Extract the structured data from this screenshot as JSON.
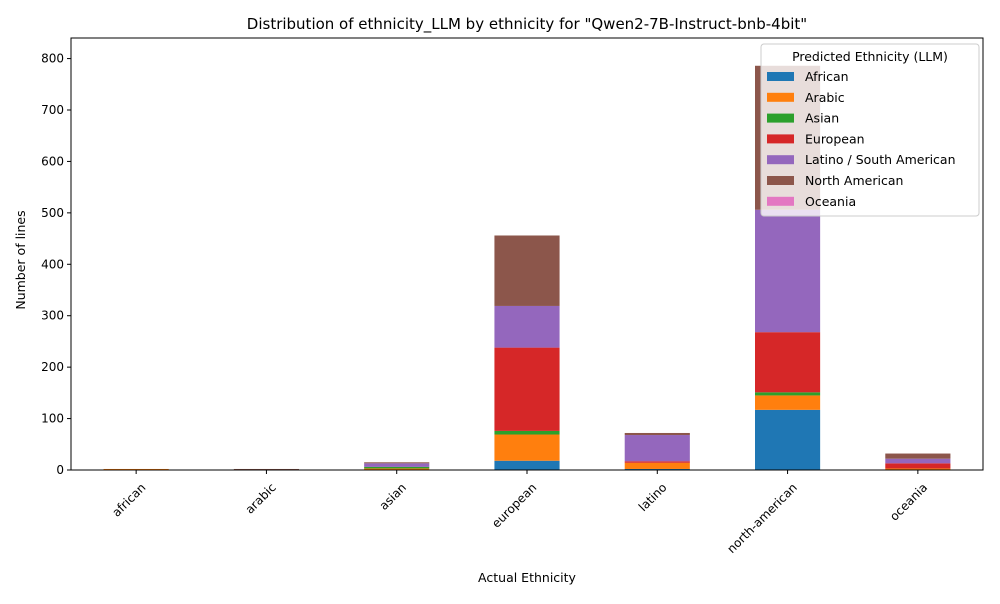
{
  "chart_data": {
    "type": "bar",
    "stacked": true,
    "title": "Distribution of ethnicity_LLM by ethnicity for \"Qwen2-7B-Instruct-bnb-4bit\"",
    "xlabel": "Actual Ethnicity",
    "ylabel": "Number of lines",
    "ylim": [
      0,
      840
    ],
    "yticks": [
      0,
      100,
      200,
      300,
      400,
      500,
      600,
      700,
      800
    ],
    "grid": false,
    "legend_title": "Predicted Ethnicity (LLM)",
    "legend_position": "top-right",
    "categories": [
      "african",
      "arabic",
      "asian",
      "european",
      "latino",
      "north-american",
      "oceania"
    ],
    "series": [
      {
        "name": "African",
        "color": "#1f77b4",
        "values": [
          0,
          0,
          0,
          18,
          2,
          117,
          0
        ]
      },
      {
        "name": "Arabic",
        "color": "#ff7f0e",
        "values": [
          2,
          0,
          3,
          51,
          12,
          28,
          3
        ]
      },
      {
        "name": "Asian",
        "color": "#2ca02c",
        "values": [
          0,
          0,
          3,
          7,
          0,
          6,
          0
        ]
      },
      {
        "name": "European",
        "color": "#d62728",
        "values": [
          0,
          0,
          0,
          162,
          3,
          117,
          10
        ]
      },
      {
        "name": "Latino / South American",
        "color": "#9467bd",
        "values": [
          0,
          1,
          7,
          81,
          51,
          238,
          9
        ]
      },
      {
        "name": "North American",
        "color": "#8c564b",
        "values": [
          0,
          1,
          2,
          137,
          4,
          280,
          10
        ]
      },
      {
        "name": "Oceania",
        "color": "#e377c2",
        "values": [
          0,
          0,
          0,
          0,
          0,
          0,
          0
        ]
      }
    ]
  }
}
